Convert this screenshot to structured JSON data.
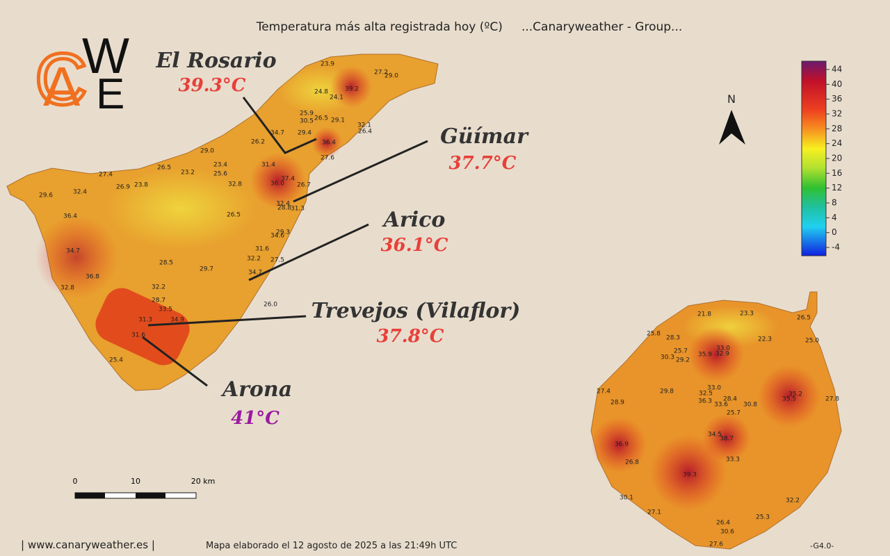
{
  "title": "Temperatura más alta registrada hoy (ºC)     ...Canaryweather - Group...",
  "logo": {
    "letters": [
      "C",
      "A",
      "W",
      "E"
    ]
  },
  "callouts": [
    {
      "place": "El Rosario",
      "temp": "39.3°C"
    },
    {
      "place": "Güímar",
      "temp": "37.7°C"
    },
    {
      "place": "Arico",
      "temp": "36.1°C"
    },
    {
      "place": "Trevejos (Vilaflor)",
      "temp": "37.8°C"
    },
    {
      "place": "Arona",
      "temp": "41°C"
    }
  ],
  "legend": {
    "ticks": [
      44,
      40,
      36,
      32,
      28,
      24,
      20,
      16,
      12,
      8,
      4,
      0,
      -4
    ]
  },
  "north": "N",
  "scale": {
    "labels": [
      "0",
      "10",
      "20 km"
    ]
  },
  "stations": {
    "tenerife": [
      "23.9",
      "27.2",
      "29.0",
      "24.8",
      "39.2",
      "24.1",
      "25.9",
      "26.5",
      "29.1",
      "30.5",
      "32.1",
      "26.4",
      "34.7",
      "29.4",
      "36.4",
      "26.2",
      "29.0",
      "27.6",
      "31.4",
      "26.5",
      "23.2",
      "23.4",
      "25.6",
      "37.4",
      "27.4",
      "36.0",
      "26.7",
      "26.9",
      "23.8",
      "32.8",
      "32.4",
      "29.6",
      "32.4",
      "28.8",
      "31.3",
      "26.5",
      "36.4",
      "29.3",
      "34.6",
      "31.6",
      "34.7",
      "32.2",
      "27.5",
      "28.5",
      "29.7",
      "34.7",
      "36.8",
      "32.8",
      "32.2",
      "28.7",
      "26.0",
      "33.5",
      "31.3",
      "34.9",
      "31.6",
      "25.4"
    ],
    "gran_canaria": [
      "21.8",
      "23.3",
      "26.5",
      "25.8",
      "28.3",
      "22.3",
      "25.0",
      "33.0",
      "25.7",
      "35.9",
      "32.9",
      "30.3",
      "29.2",
      "33.0",
      "29.8",
      "27.4",
      "35.2",
      "32.5",
      "35.5",
      "36.3",
      "28.4",
      "33.6",
      "30.8",
      "27.8",
      "28.9",
      "25.7",
      "34.5",
      "38.7",
      "36.9",
      "33.3",
      "26.8",
      "39.3",
      "30.1",
      "32.2",
      "27.1",
      "25.3",
      "26.4",
      "30.6",
      "27.6"
    ]
  },
  "footer": {
    "site": "| www.canaryweather.es |",
    "made": "Mapa elaborado el 12 agosto de 2025 a las 21:49h UTC",
    "version": "-G4.0-"
  }
}
